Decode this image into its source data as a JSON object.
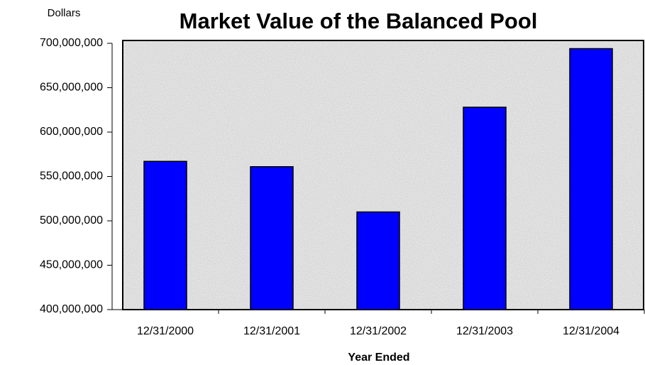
{
  "chart_data": {
    "type": "bar",
    "title": "Market Value of the Balanced Pool",
    "y_label": "Dollars",
    "x_label": "Year Ended",
    "categories": [
      "12/31/2000",
      "12/31/2001",
      "12/31/2002",
      "12/31/2003",
      "12/31/2004"
    ],
    "values": [
      567000000,
      561000000,
      510000000,
      628000000,
      694000000
    ],
    "color": "#0000ff",
    "ylim": [
      400000000,
      700000000
    ],
    "yticks": [
      {
        "value": 400000000,
        "label": "400,000,000"
      },
      {
        "value": 450000000,
        "label": "450,000,000"
      },
      {
        "value": 500000000,
        "label": "500,000,000"
      },
      {
        "value": 550000000,
        "label": "550,000,000"
      },
      {
        "value": 600000000,
        "label": "600,000,000"
      },
      {
        "value": 650000000,
        "label": "650,000,000"
      },
      {
        "value": 700000000,
        "label": "700,000,000"
      }
    ],
    "grid": false
  }
}
